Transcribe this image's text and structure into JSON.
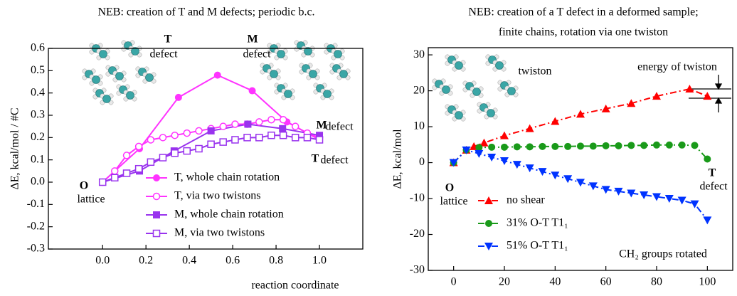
{
  "chart_data": [
    {
      "type": "line",
      "title": "NEB: creation of T and M defects; periodic b.c.",
      "ylabel": "ΔE, kcal/mol / #C",
      "xlabel": "reaction coordinate",
      "xlim": [
        -0.25,
        1.2
      ],
      "ylim": [
        -0.3,
        0.6
      ],
      "xticks": [
        {
          "value": 0,
          "label": "0.0"
        },
        0.2,
        0.4,
        0.6,
        0.8,
        {
          "value": 1,
          "label": "1.0"
        }
      ],
      "yticks": [
        -0.3,
        -0.2,
        -0.1,
        {
          "value": 0,
          "label": "0.0"
        },
        0.1,
        0.2,
        0.3,
        0.4,
        0.5,
        0.6
      ],
      "line_style": "solid",
      "legend": "lower right",
      "series": [
        {
          "name": "T, whole chain rotation",
          "color": "#ff33ff",
          "marker": "circle",
          "x": [
            0,
            0.17,
            0.35,
            0.53,
            0.69,
            0.85,
            1.0
          ],
          "values": [
            0,
            0.15,
            0.38,
            0.48,
            0.41,
            0.27,
            0.19
          ]
        },
        {
          "name": "T, via two twistons",
          "color": "#ff33ff",
          "marker": "circle-open",
          "x": [
            0,
            0.056,
            0.111,
            0.167,
            0.222,
            0.278,
            0.333,
            0.389,
            0.444,
            0.5,
            0.556,
            0.611,
            0.667,
            0.722,
            0.778,
            0.833,
            0.889,
            0.944,
            1.0
          ],
          "values": [
            0,
            0.05,
            0.12,
            0.16,
            0.19,
            0.2,
            0.21,
            0.22,
            0.23,
            0.24,
            0.25,
            0.26,
            0.26,
            0.27,
            0.28,
            0.28,
            0.25,
            0.22,
            0.2
          ]
        },
        {
          "name": "M, whole chain rotation",
          "color": "#9933ee",
          "marker": "square",
          "x": [
            0,
            0.17,
            0.33,
            0.5,
            0.67,
            0.83,
            1.0
          ],
          "values": [
            0,
            0.05,
            0.14,
            0.23,
            0.26,
            0.24,
            0.21
          ]
        },
        {
          "name": "M, via two twistons",
          "color": "#9933ee",
          "marker": "square-open",
          "x": [
            0,
            0.056,
            0.111,
            0.167,
            0.222,
            0.278,
            0.333,
            0.389,
            0.444,
            0.5,
            0.556,
            0.611,
            0.667,
            0.722,
            0.778,
            0.833,
            0.889,
            0.944,
            1.0
          ],
          "values": [
            0,
            0.02,
            0.04,
            0.06,
            0.09,
            0.11,
            0.13,
            0.14,
            0.15,
            0.17,
            0.18,
            0.19,
            0.2,
            0.2,
            0.21,
            0.21,
            0.2,
            0.2,
            0.19
          ]
        }
      ],
      "annotations": [
        "T",
        "defect",
        "M",
        "defect",
        "M",
        "defect",
        "T",
        "defect",
        "O",
        "lattice"
      ]
    },
    {
      "type": "line",
      "title": [
        "NEB: creation of a T defect in a deformed sample;",
        "finite chains, rotation via one twiston"
      ],
      "ylabel": "ΔE, kcal/mol",
      "xlabel": "CH₂ groups rotated",
      "xlim": [
        -10,
        110
      ],
      "ylim": [
        -30,
        32
      ],
      "xticks": [
        0,
        20,
        40,
        60,
        80,
        100
      ],
      "yticks": [
        -30,
        -20,
        -10,
        0,
        10,
        20,
        30
      ],
      "line_style": "dashed",
      "legend": "lower left",
      "series": [
        {
          "name": "no shear",
          "color": "#ff0000",
          "marker": "triangle-up",
          "x": [
            0,
            5,
            8,
            12,
            20,
            30,
            40,
            50,
            60,
            70,
            80,
            93,
            100
          ],
          "values": [
            0,
            3.5,
            4.5,
            5.5,
            7.5,
            9.5,
            11.5,
            13.5,
            15,
            16.5,
            18.5,
            20.5,
            18.5
          ]
        },
        {
          "name": "31% O-T T1₁",
          "color": "#1a9a1a",
          "marker": "circle",
          "x": [
            0,
            5,
            10,
            15,
            20,
            25,
            30,
            35,
            40,
            45,
            50,
            55,
            60,
            65,
            70,
            75,
            80,
            85,
            90,
            95,
            100
          ],
          "values": [
            0,
            3.5,
            4.2,
            4.3,
            4.3,
            4.4,
            4.4,
            4.5,
            4.5,
            4.5,
            4.6,
            4.6,
            4.7,
            4.7,
            4.8,
            4.8,
            4.9,
            4.9,
            4.9,
            4.8,
            1.0
          ]
        },
        {
          "name": "51% O-T T1₁",
          "color": "#0033ff",
          "marker": "triangle-down",
          "x": [
            0,
            5,
            10,
            15,
            20,
            25,
            30,
            35,
            40,
            45,
            50,
            55,
            60,
            65,
            70,
            75,
            80,
            85,
            90,
            95,
            100
          ],
          "values": [
            0,
            3.5,
            2.5,
            1.5,
            0.5,
            -0.5,
            -1.5,
            -2.5,
            -3.5,
            -4.5,
            -5.5,
            -6.5,
            -7.5,
            -8.0,
            -8.5,
            -9,
            -9.5,
            -10,
            -10.5,
            -11.5,
            -16
          ]
        }
      ],
      "annotations": [
        "twiston",
        "energy of twiston",
        "O",
        "lattice",
        "T",
        "defect"
      ]
    }
  ]
}
